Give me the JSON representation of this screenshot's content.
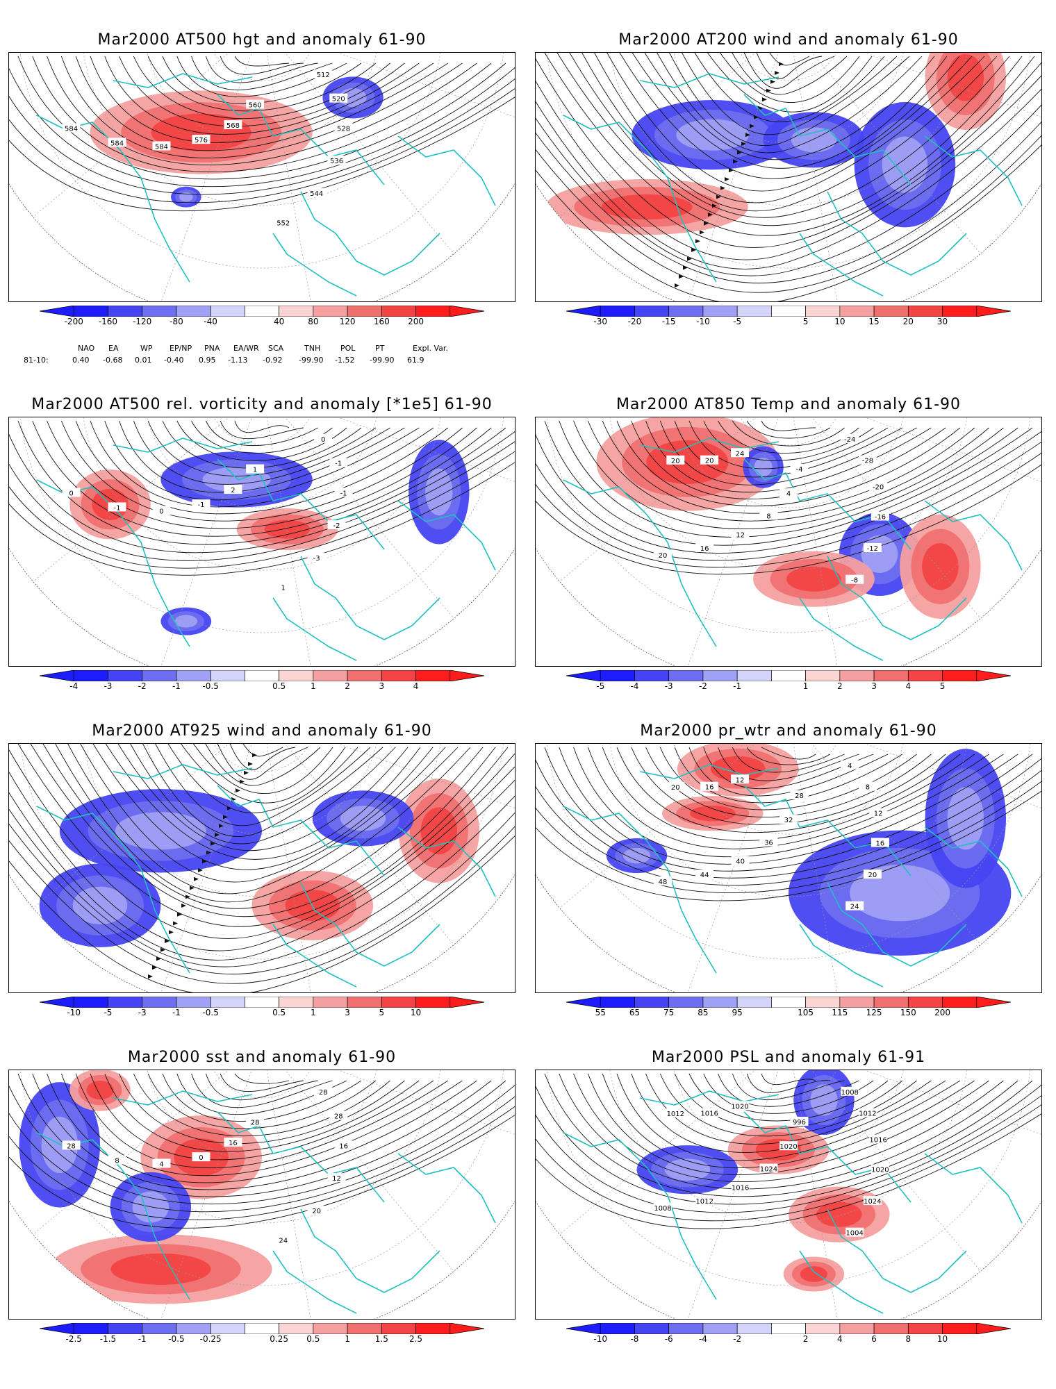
{
  "panels": [
    {
      "title": "Mar2000 AT500 hgt and anomaly 61-90",
      "colorbar": {
        "labels": [
          "-200",
          "-160",
          "-120",
          "-80",
          "-40",
          "40",
          "80",
          "120",
          "160",
          "200"
        ]
      },
      "contour_labels": [
        "512",
        "520",
        "528",
        "536",
        "544",
        "552",
        "560",
        "568",
        "576",
        "584",
        "584",
        "584"
      ],
      "anomaly_pattern": [
        [
          "positive",
          0.38,
          0.32,
          0.22,
          0.12
        ],
        [
          "negative",
          0.68,
          0.18,
          0.06,
          0.06
        ],
        [
          "negative",
          0.35,
          0.58,
          0.03,
          0.03
        ]
      ],
      "style": "contours"
    },
    {
      "title": "Mar2000 AT200 wind and anomaly 61-90",
      "colorbar": {
        "labels": [
          "-30",
          "-20",
          "-15",
          "-10",
          "-5",
          "5",
          "10",
          "15",
          "20",
          "30"
        ]
      },
      "contour_labels": [],
      "anomaly_pattern": [
        [
          "negative",
          0.35,
          0.33,
          0.16,
          0.1
        ],
        [
          "positive",
          0.22,
          0.62,
          0.2,
          0.08
        ],
        [
          "negative",
          0.55,
          0.35,
          0.1,
          0.08
        ],
        [
          "negative",
          0.73,
          0.45,
          0.1,
          0.18
        ],
        [
          "positive",
          0.85,
          0.1,
          0.08,
          0.15
        ]
      ],
      "style": "streamlines"
    },
    {
      "title": "Mar2000 AT500 rel. vorticity and anomaly [*1e5] 61-90",
      "colorbar": {
        "labels": [
          "-4",
          "-3",
          "-2",
          "-1",
          "-0.5",
          "0.5",
          "1",
          "2",
          "3",
          "4"
        ]
      },
      "contour_labels": [
        "0",
        "-1",
        "-1",
        "-2",
        "-3",
        "1",
        "1",
        "2",
        "-1",
        "0",
        "-1",
        "0"
      ],
      "anomaly_pattern": [
        [
          "negative",
          0.45,
          0.25,
          0.15,
          0.08
        ],
        [
          "positive",
          0.2,
          0.35,
          0.08,
          0.1
        ],
        [
          "negative",
          0.85,
          0.3,
          0.06,
          0.15
        ],
        [
          "positive",
          0.55,
          0.45,
          0.1,
          0.06
        ],
        [
          "negative",
          0.35,
          0.82,
          0.05,
          0.04
        ]
      ],
      "style": "contours"
    },
    {
      "title": "Mar2000 AT850 Temp and anomaly 61-90",
      "colorbar": {
        "labels": [
          "-5",
          "-4",
          "-3",
          "-2",
          "-1",
          "1",
          "2",
          "3",
          "4",
          "5"
        ]
      },
      "contour_labels": [
        "-24",
        "-28",
        "-20",
        "-16",
        "-12",
        "-8",
        "-4",
        "4",
        "8",
        "12",
        "16",
        "20",
        "24",
        "20",
        "20"
      ],
      "anomaly_pattern": [
        [
          "positive",
          0.3,
          0.18,
          0.18,
          0.14
        ],
        [
          "negative",
          0.68,
          0.55,
          0.08,
          0.12
        ],
        [
          "positive",
          0.55,
          0.65,
          0.12,
          0.08
        ],
        [
          "positive",
          0.8,
          0.6,
          0.08,
          0.15
        ],
        [
          "negative",
          0.45,
          0.2,
          0.04,
          0.06
        ]
      ],
      "style": "contours"
    },
    {
      "title": "Mar2000 AT925 wind and anomaly 61-90",
      "colorbar": {
        "labels": [
          "-10",
          "-5",
          "-3",
          "-1",
          "-0.5",
          "0.5",
          "1",
          "3",
          "5",
          "10"
        ]
      },
      "contour_labels": [],
      "anomaly_pattern": [
        [
          "negative",
          0.3,
          0.35,
          0.2,
          0.12
        ],
        [
          "positive",
          0.6,
          0.65,
          0.12,
          0.1
        ],
        [
          "positive",
          0.85,
          0.35,
          0.08,
          0.15
        ],
        [
          "negative",
          0.7,
          0.3,
          0.1,
          0.08
        ],
        [
          "negative",
          0.18,
          0.65,
          0.12,
          0.12
        ]
      ],
      "style": "streamlines"
    },
    {
      "title": "Mar2000 pr_wtr and anomaly 61-90",
      "colorbar": {
        "labels": [
          "55",
          "65",
          "75",
          "85",
          "95",
          "105",
          "115",
          "125",
          "150",
          "200"
        ]
      },
      "contour_labels": [
        "4",
        "8",
        "12",
        "16",
        "20",
        "24",
        "28",
        "32",
        "36",
        "40",
        "44",
        "48",
        "12",
        "16",
        "20"
      ],
      "anomaly_pattern": [
        [
          "negative",
          0.72,
          0.6,
          0.22,
          0.18
        ],
        [
          "negative",
          0.85,
          0.3,
          0.08,
          0.2
        ],
        [
          "positive",
          0.4,
          0.1,
          0.12,
          0.08
        ],
        [
          "positive",
          0.35,
          0.28,
          0.1,
          0.05
        ],
        [
          "negative",
          0.2,
          0.45,
          0.06,
          0.05
        ]
      ],
      "style": "contours"
    },
    {
      "title": "Mar2000 sst and anomaly 61-90",
      "colorbar": {
        "labels": [
          "-2.5",
          "-1.5",
          "-1",
          "-0.5",
          "-0.25",
          "0.25",
          "0.5",
          "1",
          "1.5",
          "2.5"
        ]
      },
      "contour_labels": [
        "28",
        "28",
        "16",
        "12",
        "20",
        "24",
        "28",
        "16",
        "0",
        "4",
        "8",
        "28"
      ],
      "anomaly_pattern": [
        [
          "positive",
          0.38,
          0.35,
          0.12,
          0.12
        ],
        [
          "positive",
          0.3,
          0.8,
          0.22,
          0.1
        ],
        [
          "negative",
          0.1,
          0.3,
          0.08,
          0.18
        ],
        [
          "negative",
          0.28,
          0.55,
          0.08,
          0.1
        ],
        [
          "positive",
          0.18,
          0.08,
          0.06,
          0.06
        ]
      ],
      "style": "contours"
    },
    {
      "title": "Mar2000 PSL and anomaly 61-91",
      "colorbar": {
        "labels": [
          "-10",
          "-8",
          "-6",
          "-4",
          "-2",
          "2",
          "4",
          "6",
          "8",
          "10"
        ]
      },
      "contour_labels": [
        "1008",
        "1012",
        "1016",
        "1020",
        "1024",
        "1004",
        "996",
        "1020",
        "1024",
        "1016",
        "1012",
        "1008",
        "1020",
        "1016",
        "1012"
      ],
      "anomaly_pattern": [
        [
          "negative",
          0.57,
          0.12,
          0.06,
          0.1
        ],
        [
          "positive",
          0.48,
          0.32,
          0.1,
          0.07
        ],
        [
          "negative",
          0.3,
          0.4,
          0.1,
          0.07
        ],
        [
          "positive",
          0.6,
          0.58,
          0.1,
          0.08
        ],
        [
          "positive",
          0.55,
          0.82,
          0.06,
          0.05
        ]
      ],
      "style": "contours"
    }
  ],
  "index_table": {
    "headers": [
      "NAO",
      "EA",
      "WP",
      "EP/NP",
      "PNA",
      "EA/WR",
      "SCA",
      "TNH",
      "POL",
      "PT",
      "Expl. Var."
    ],
    "row_label": "81-10:",
    "values": [
      "0.40",
      "-0.68",
      "0.01",
      "-0.40",
      "0.95",
      "-1.13",
      "-0.92",
      "-99.90",
      "-1.52",
      "-99.90",
      "61.9"
    ]
  },
  "colors": {
    "neg": [
      "#1c1cff",
      "#4444f2",
      "#6e6ef0",
      "#a0a0f5",
      "#d4d4fb"
    ],
    "pos": [
      "#fbd4d4",
      "#f5a0a0",
      "#f07070",
      "#f24444",
      "#ff1c1c"
    ],
    "coast": "#20c0c0"
  }
}
